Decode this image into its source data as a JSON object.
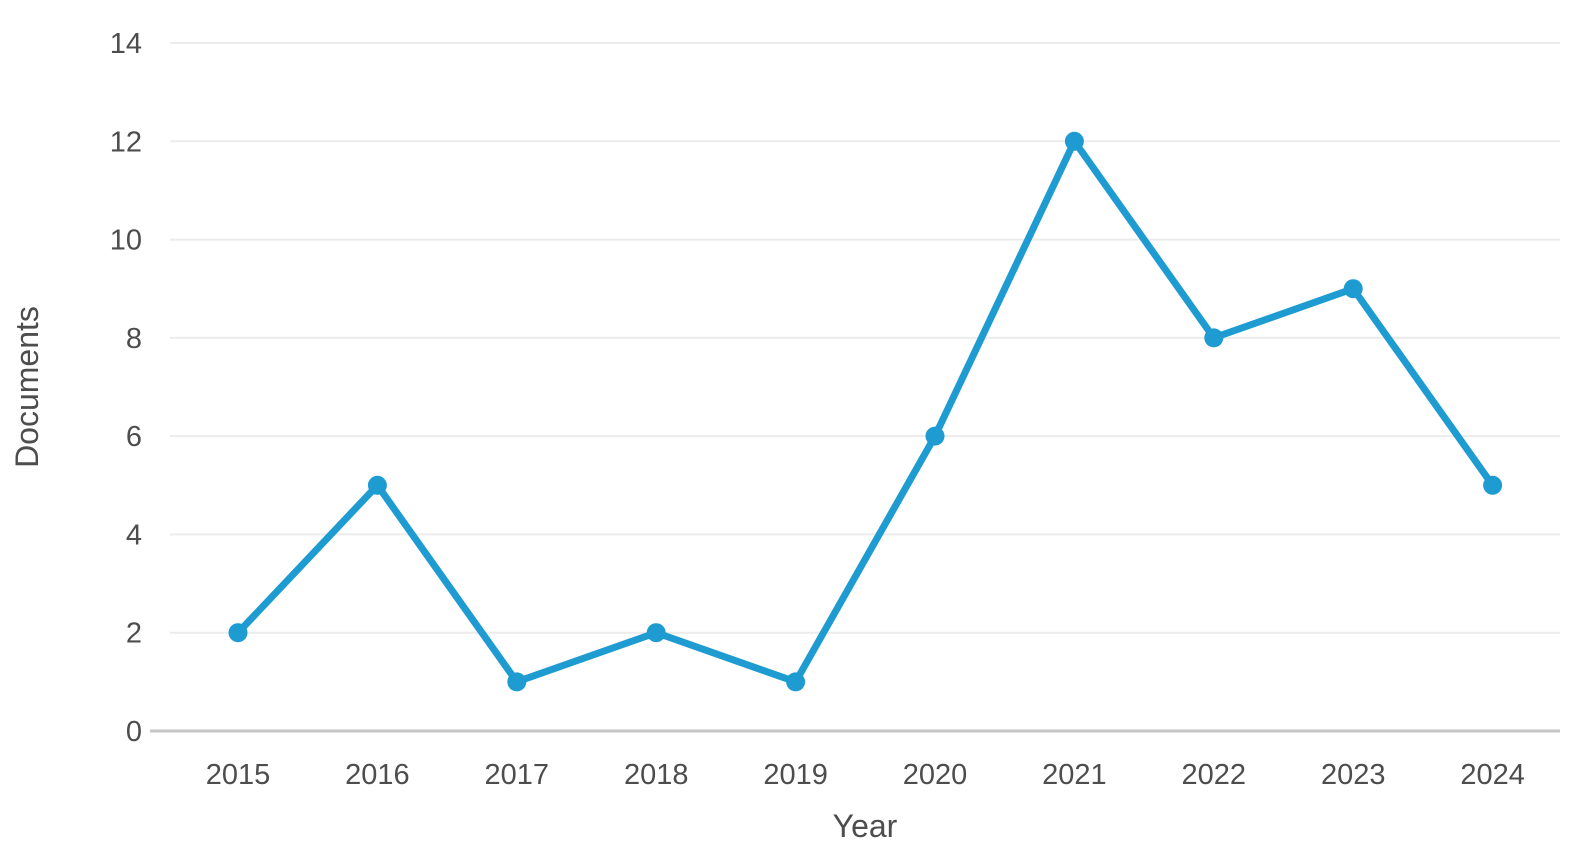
{
  "chart_data": {
    "type": "line",
    "title": "",
    "xlabel": "Year",
    "ylabel": "Documents",
    "categories": [
      "2015",
      "2016",
      "2017",
      "2018",
      "2019",
      "2020",
      "2021",
      "2022",
      "2023",
      "2024"
    ],
    "values": [
      2,
      5,
      1,
      2,
      1,
      6,
      12,
      8,
      9,
      5
    ],
    "series_name": "Documents",
    "ylim": [
      0,
      14
    ],
    "yticks": [
      0,
      2,
      4,
      6,
      8,
      10,
      12,
      14
    ],
    "grid": true,
    "legend_position": "none",
    "line_color": "#1e9cd2",
    "marker_color": "#1e9cd2",
    "text_color": "#4d4d4d",
    "grid_color": "#ececec",
    "axis_color": "#c6c6c6"
  }
}
